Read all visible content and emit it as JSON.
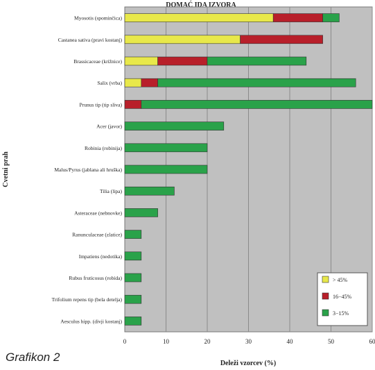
{
  "figure_caption": "Grafikon 2",
  "chart_data": {
    "type": "bar",
    "orientation": "horizontal",
    "stacked": true,
    "title": "DOMAĆ IDA IZVORA",
    "xlabel": "Deleži vzorcev (%)",
    "ylabel": "Cvetni prah",
    "xlim": [
      0,
      60
    ],
    "xticks": [
      0,
      10,
      20,
      30,
      40,
      50,
      60
    ],
    "grid": true,
    "legend_position": "bottom-right",
    "plot_background": "#c0c0c0",
    "categories": [
      "Myosotis (spominčica)",
      "Castanea sativa (pravi kostanj)",
      "Brassicaceae (križnice)",
      "Salix (vrba)",
      "Prunus tip (tip sliva)",
      "Acer (javor)",
      "Robinia (robinija)",
      "Malus/Pyrus (jablana ali hruška)",
      "Tilia (lipa)",
      "Asteraceae (nebnovke)",
      "Ranunculaceae (zlatice)",
      "Impatiens (nedotika)",
      "Rubus fruticosus (robida)",
      "Trifolium repens tip (bela detelja)",
      "Aesculus hipp. (divji kostanj)"
    ],
    "series": [
      {
        "name": "> 45%",
        "color": "#e8e84a",
        "values": [
          36,
          28,
          8,
          4,
          0,
          0,
          0,
          0,
          0,
          0,
          0,
          0,
          0,
          0,
          0
        ]
      },
      {
        "name": "16−45%",
        "color": "#b81f2a",
        "values": [
          12,
          20,
          12,
          4,
          4,
          0,
          0,
          0,
          0,
          0,
          0,
          0,
          0,
          0,
          0
        ]
      },
      {
        "name": "3−15%",
        "color": "#2aa24a",
        "values": [
          4,
          0,
          24,
          48,
          56,
          24,
          20,
          20,
          12,
          8,
          4,
          4,
          4,
          4,
          4
        ]
      }
    ]
  }
}
